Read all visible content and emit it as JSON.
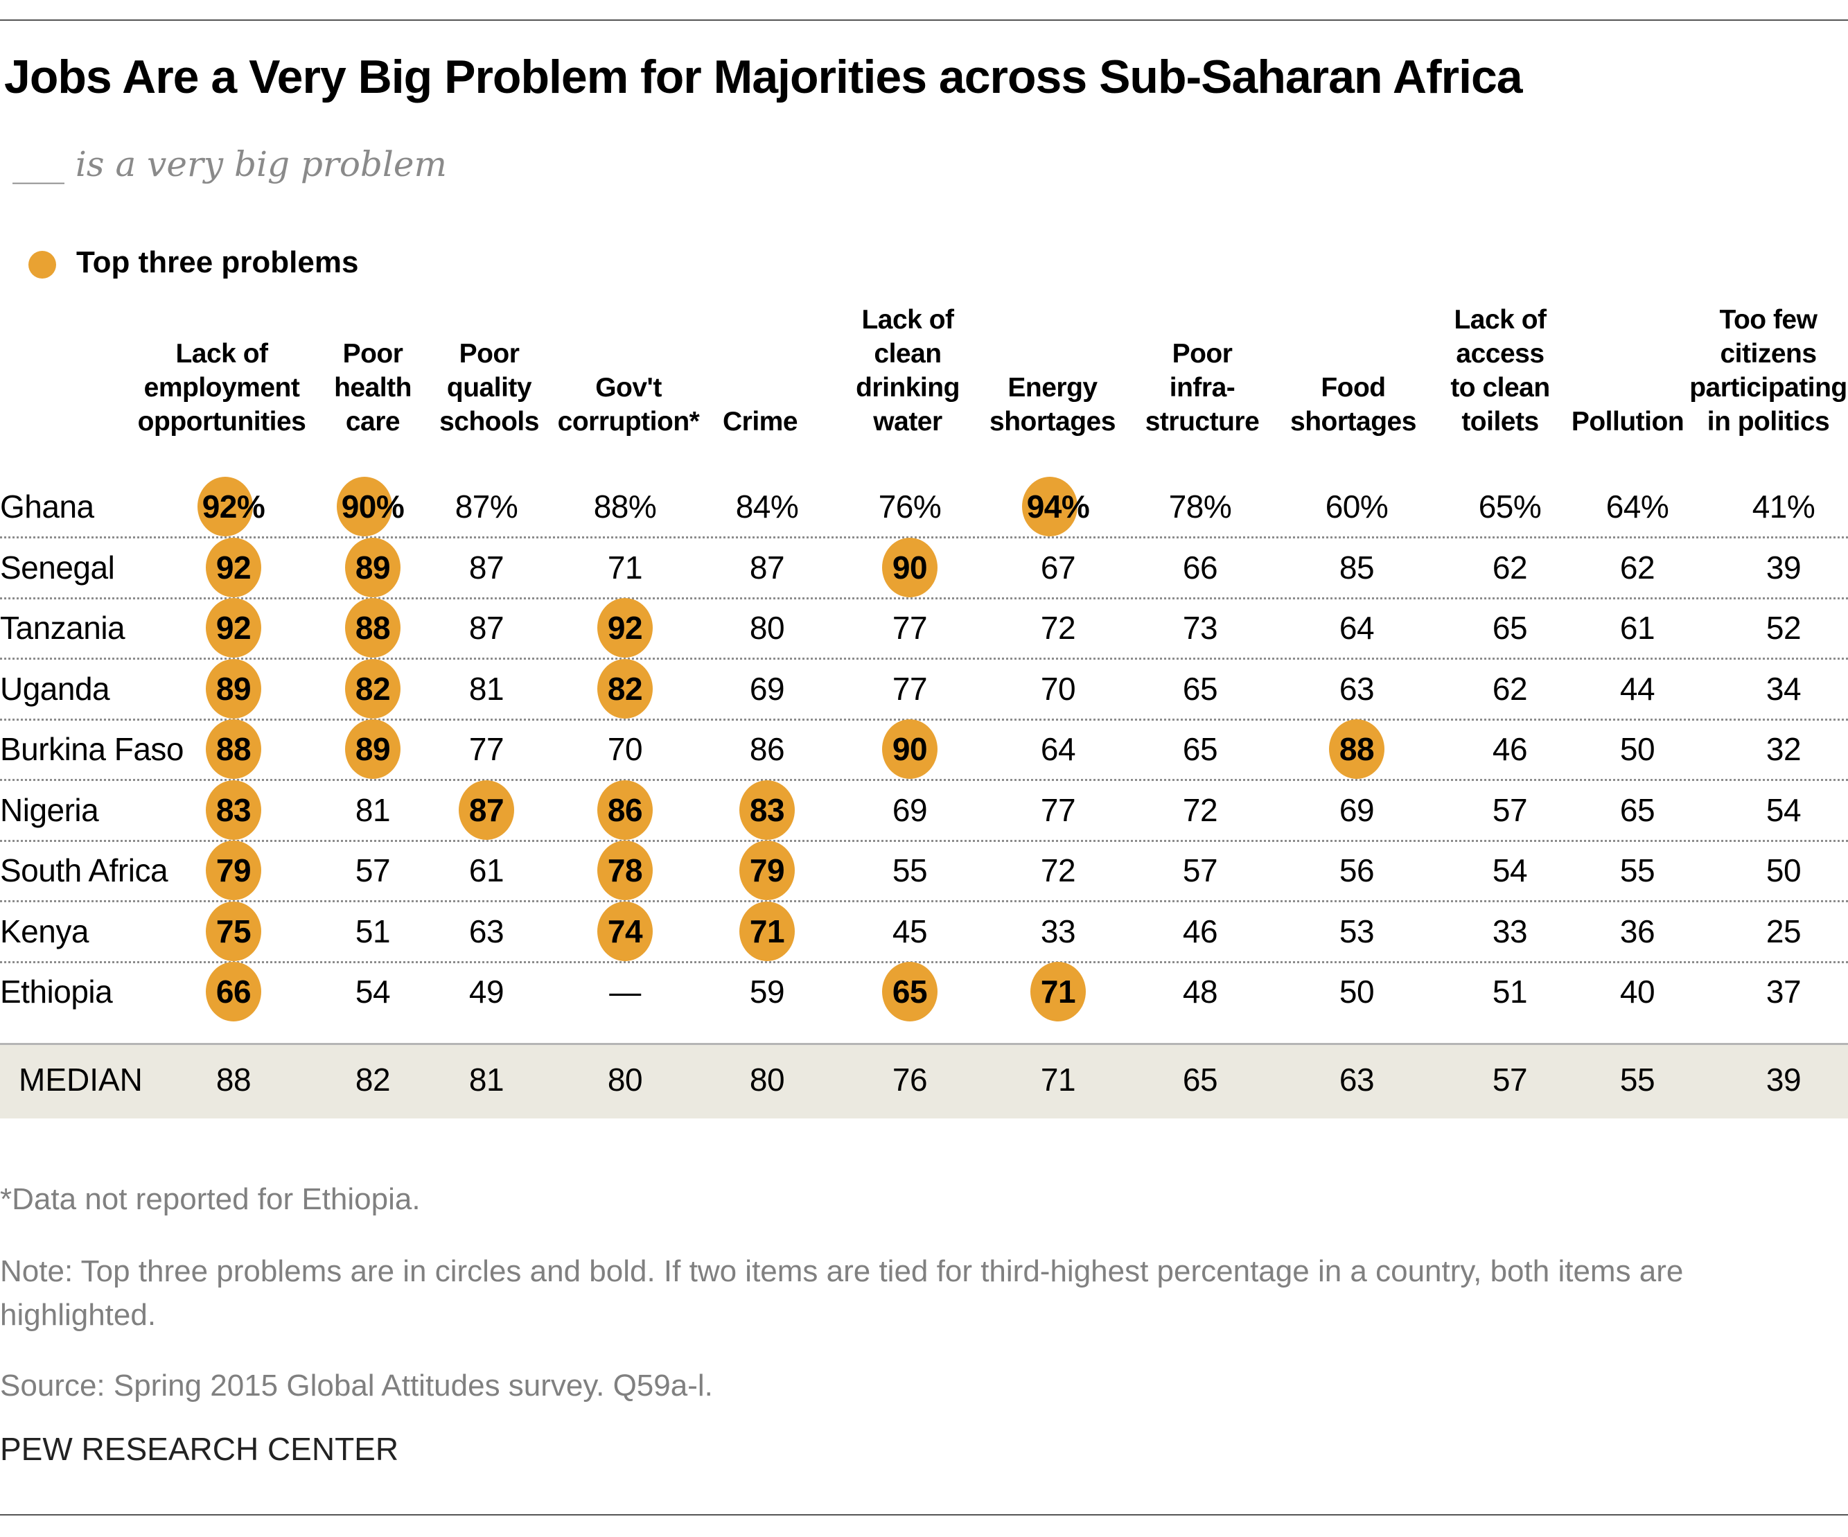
{
  "title": "Jobs Are a Very Big Problem for Majorities across Sub-Saharan Africa",
  "subtitle": "___ is a very big problem",
  "legend": {
    "label": "Top three problems",
    "color": "#E9A232"
  },
  "chart_data": {
    "type": "table",
    "columns": [
      [
        "Lack of",
        "employment",
        "opportunities"
      ],
      [
        "Poor",
        "health",
        "care"
      ],
      [
        "Poor",
        "quality",
        "schools"
      ],
      [
        "Gov't",
        "corruption*"
      ],
      [
        "Crime"
      ],
      [
        "Lack of",
        "clean",
        "drinking",
        "water"
      ],
      [
        "Energy",
        "shortages"
      ],
      [
        "Poor",
        "infra-",
        "structure"
      ],
      [
        "Food",
        "shortages"
      ],
      [
        "Lack of",
        "access",
        "to clean",
        "toilets"
      ],
      [
        "Pollution"
      ],
      [
        "Too few",
        "citizens",
        "participating",
        "in politics"
      ]
    ],
    "rows": [
      {
        "country": "Ghana",
        "values": [
          "92%",
          "90%",
          "87%",
          "88%",
          "84%",
          "76%",
          "94%",
          "78%",
          "60%",
          "65%",
          "64%",
          "41%"
        ],
        "top": [
          0,
          1,
          6
        ]
      },
      {
        "country": "Senegal",
        "values": [
          "92",
          "89",
          "87",
          "71",
          "87",
          "90",
          "67",
          "66",
          "85",
          "62",
          "62",
          "39"
        ],
        "top": [
          0,
          1,
          5
        ]
      },
      {
        "country": "Tanzania",
        "values": [
          "92",
          "88",
          "87",
          "92",
          "80",
          "77",
          "72",
          "73",
          "64",
          "65",
          "61",
          "52"
        ],
        "top": [
          0,
          1,
          3
        ]
      },
      {
        "country": "Uganda",
        "values": [
          "89",
          "82",
          "81",
          "82",
          "69",
          "77",
          "70",
          "65",
          "63",
          "62",
          "44",
          "34"
        ],
        "top": [
          0,
          1,
          3
        ]
      },
      {
        "country": "Burkina Faso",
        "values": [
          "88",
          "89",
          "77",
          "70",
          "86",
          "90",
          "64",
          "65",
          "88",
          "46",
          "50",
          "32"
        ],
        "top": [
          0,
          1,
          5,
          8
        ]
      },
      {
        "country": "Nigeria",
        "values": [
          "83",
          "81",
          "87",
          "86",
          "83",
          "69",
          "77",
          "72",
          "69",
          "57",
          "65",
          "54"
        ],
        "top": [
          0,
          2,
          3,
          4
        ]
      },
      {
        "country": "South Africa",
        "values": [
          "79",
          "57",
          "61",
          "78",
          "79",
          "55",
          "72",
          "57",
          "56",
          "54",
          "55",
          "50"
        ],
        "top": [
          0,
          3,
          4
        ]
      },
      {
        "country": "Kenya",
        "values": [
          "75",
          "51",
          "63",
          "74",
          "71",
          "45",
          "33",
          "46",
          "53",
          "33",
          "36",
          "25"
        ],
        "top": [
          0,
          3,
          4
        ]
      },
      {
        "country": "Ethiopia",
        "values": [
          "66",
          "54",
          "49",
          "—",
          "59",
          "65",
          "71",
          "48",
          "50",
          "51",
          "40",
          "37"
        ],
        "top": [
          0,
          5,
          6
        ]
      }
    ],
    "median": {
      "label": "MEDIAN",
      "values": [
        "88",
        "82",
        "81",
        "80",
        "80",
        "76",
        "71",
        "65",
        "63",
        "57",
        "55",
        "39"
      ]
    }
  },
  "footnotes": {
    "asterisk": "*Data not reported for Ethiopia.",
    "note": "Note: Top three problems are in circles and bold. If two items are tied for third-highest percentage in a country, both items are highlighted.",
    "source": "Source: Spring 2015 Global Attitudes survey. Q59a-l."
  },
  "brand": "PEW RESEARCH CENTER"
}
